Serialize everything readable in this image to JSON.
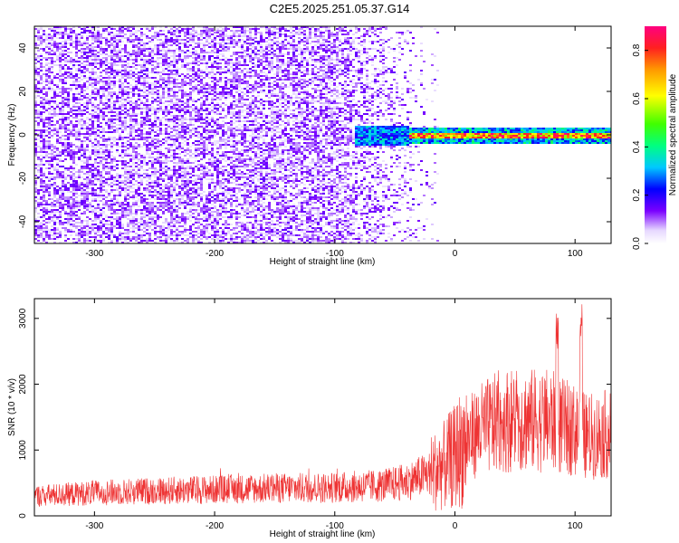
{
  "figure_title": "C2E5.2025.251.05.37.G14",
  "chart_data": [
    {
      "type": "heatmap",
      "title": "C2E5.2025.251.05.37.G14",
      "xlabel": "Height of straight line (km)",
      "ylabel": "Frequency (Hz)",
      "xlim": [
        -350,
        130
      ],
      "ylim": [
        -50,
        50
      ],
      "x_ticks": [
        -300,
        -200,
        -100,
        0,
        100
      ],
      "x_tick_labels": [
        "-300",
        "-200",
        "-100",
        "0",
        "100"
      ],
      "y_ticks": [
        -40,
        -20,
        0,
        20,
        40
      ],
      "y_tick_labels": [
        "-40",
        "-20",
        "0",
        "20",
        "40"
      ],
      "colorbar": {
        "label": "Normalized spectral amplitude",
        "range": [
          0.0,
          0.9
        ],
        "ticks": [
          0.0,
          0.2,
          0.4,
          0.6,
          0.8
        ],
        "tick_labels": [
          "0.0",
          "0.2",
          "0.4",
          "0.6",
          "0.8"
        ]
      },
      "description_regions": [
        {
          "x_range": [
            -350,
            -100
          ],
          "f_range": [
            -50,
            50
          ],
          "amplitude": "noise ~0.05-0.15"
        },
        {
          "x_range": [
            -100,
            -30
          ],
          "f_range": [
            -50,
            50
          ],
          "amplitude": "fading noise"
        },
        {
          "x_range": [
            -85,
            -40
          ],
          "f_range": [
            -5,
            5
          ],
          "amplitude": "0.2-0.35"
        },
        {
          "x_range": [
            -40,
            130
          ],
          "f_range": [
            -1,
            1
          ],
          "amplitude": "0.6-0.9"
        }
      ]
    },
    {
      "type": "line",
      "title": "",
      "xlabel": "Height of straight line (km)",
      "ylabel": "SNR (10 * v/v)",
      "xlim": [
        -350,
        130
      ],
      "ylim": [
        0,
        3300
      ],
      "x_ticks": [
        -300,
        -200,
        -100,
        0,
        100
      ],
      "x_tick_labels": [
        "-300",
        "-200",
        "-100",
        "0",
        "100"
      ],
      "y_ticks": [
        0,
        1000,
        2000,
        3000
      ],
      "y_tick_labels": [
        "0",
        "1000",
        "2000",
        "3000"
      ],
      "color": "#ee3333",
      "series": [
        {
          "name": "SNR",
          "x": [
            -350,
            -300,
            -250,
            -200,
            -150,
            -100,
            -60,
            -40,
            -20,
            -10,
            0,
            10,
            20,
            40,
            60,
            80,
            90,
            100,
            110,
            130
          ],
          "values": [
            300,
            350,
            380,
            400,
            420,
            430,
            460,
            520,
            650,
            750,
            900,
            1150,
            1300,
            1450,
            1450,
            1450,
            1350,
            1300,
            1200,
            1250
          ]
        }
      ],
      "annotations": [
        {
          "x": 85,
          "peak": 3150
        },
        {
          "x": 105,
          "peak": 3300
        }
      ]
    }
  ]
}
